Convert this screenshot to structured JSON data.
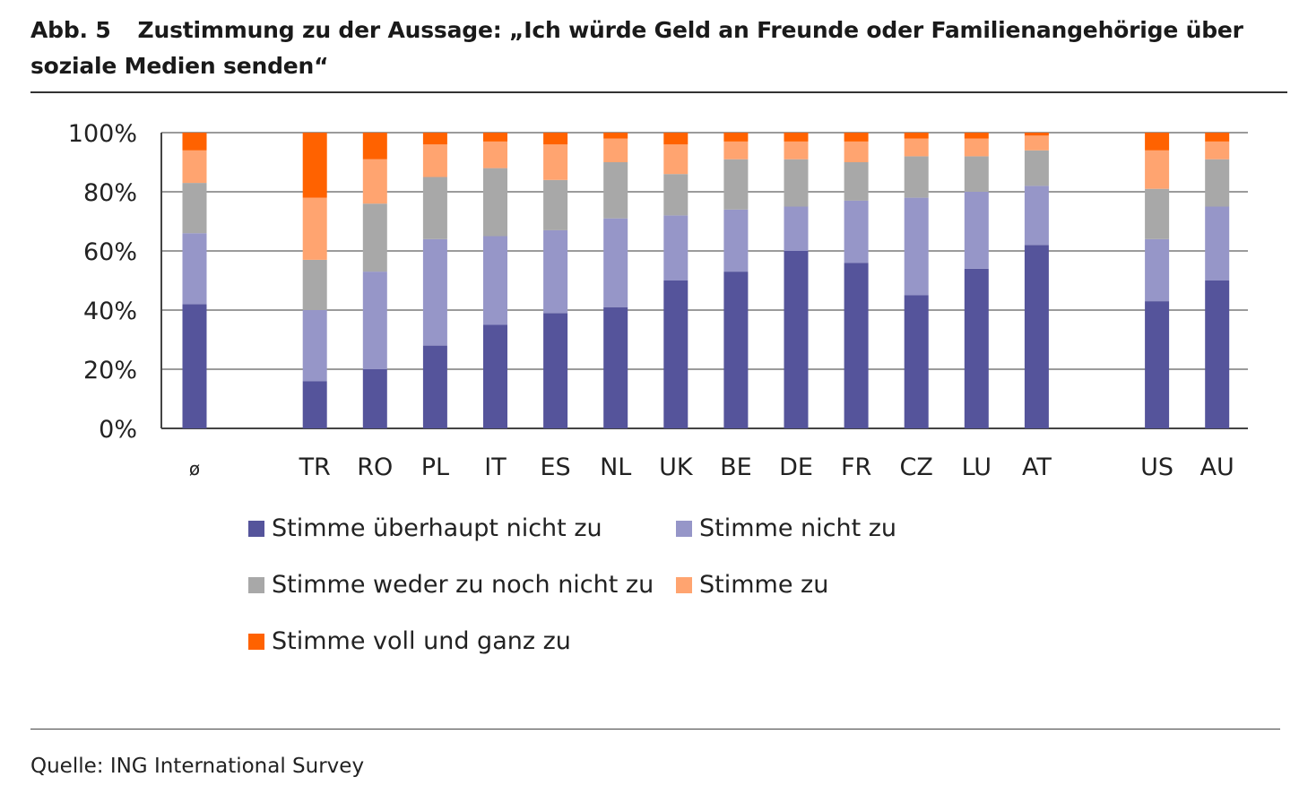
{
  "header": {
    "figure_label": "Abb. 5",
    "title": "Zustimmung zu der Aussage: „Ich würde Geld an Freunde oder Familienangehörige über soziale Medien senden“"
  },
  "footer": {
    "source": "Quelle: ING International Survey"
  },
  "colors": {
    "Stimme überhaupt nicht zu": "#55549b",
    "Stimme nicht zu": "#9696c8",
    "Stimme weder zu noch nicht zu": "#a8a8a8",
    "Stimme zu": "#ffa470",
    "Stimme voll und ganz zu": "#ff6200"
  },
  "chart_data": {
    "type": "bar",
    "stacked": true,
    "title": "",
    "xlabel": "",
    "ylabel": "",
    "ylim": [
      0,
      100
    ],
    "y_ticks": [
      "0%",
      "20%",
      "40%",
      "60%",
      "80%",
      "100%"
    ],
    "grid": true,
    "legend_position": "bottom",
    "categories": [
      "ø",
      "TR",
      "RO",
      "PL",
      "IT",
      "ES",
      "NL",
      "UK",
      "BE",
      "DE",
      "FR",
      "CZ",
      "LU",
      "AT",
      "US",
      "AU"
    ],
    "series": [
      {
        "name": "Stimme überhaupt nicht zu",
        "values": [
          42,
          16,
          20,
          28,
          35,
          39,
          41,
          50,
          53,
          60,
          56,
          45,
          54,
          62,
          43,
          50
        ]
      },
      {
        "name": "Stimme nicht zu",
        "values": [
          24,
          24,
          33,
          36,
          30,
          28,
          30,
          22,
          21,
          15,
          21,
          33,
          26,
          20,
          21,
          25
        ]
      },
      {
        "name": "Stimme weder zu noch nicht zu",
        "values": [
          17,
          17,
          23,
          21,
          23,
          17,
          19,
          14,
          17,
          16,
          13,
          14,
          12,
          12,
          17,
          16
        ]
      },
      {
        "name": "Stimme zu",
        "values": [
          11,
          21,
          15,
          11,
          9,
          12,
          8,
          10,
          6,
          6,
          7,
          6,
          6,
          5,
          13,
          6
        ]
      },
      {
        "name": "Stimme voll und ganz zu",
        "values": [
          6,
          22,
          9,
          4,
          3,
          4,
          2,
          4,
          3,
          3,
          3,
          2,
          2,
          1,
          6,
          3
        ]
      }
    ]
  }
}
